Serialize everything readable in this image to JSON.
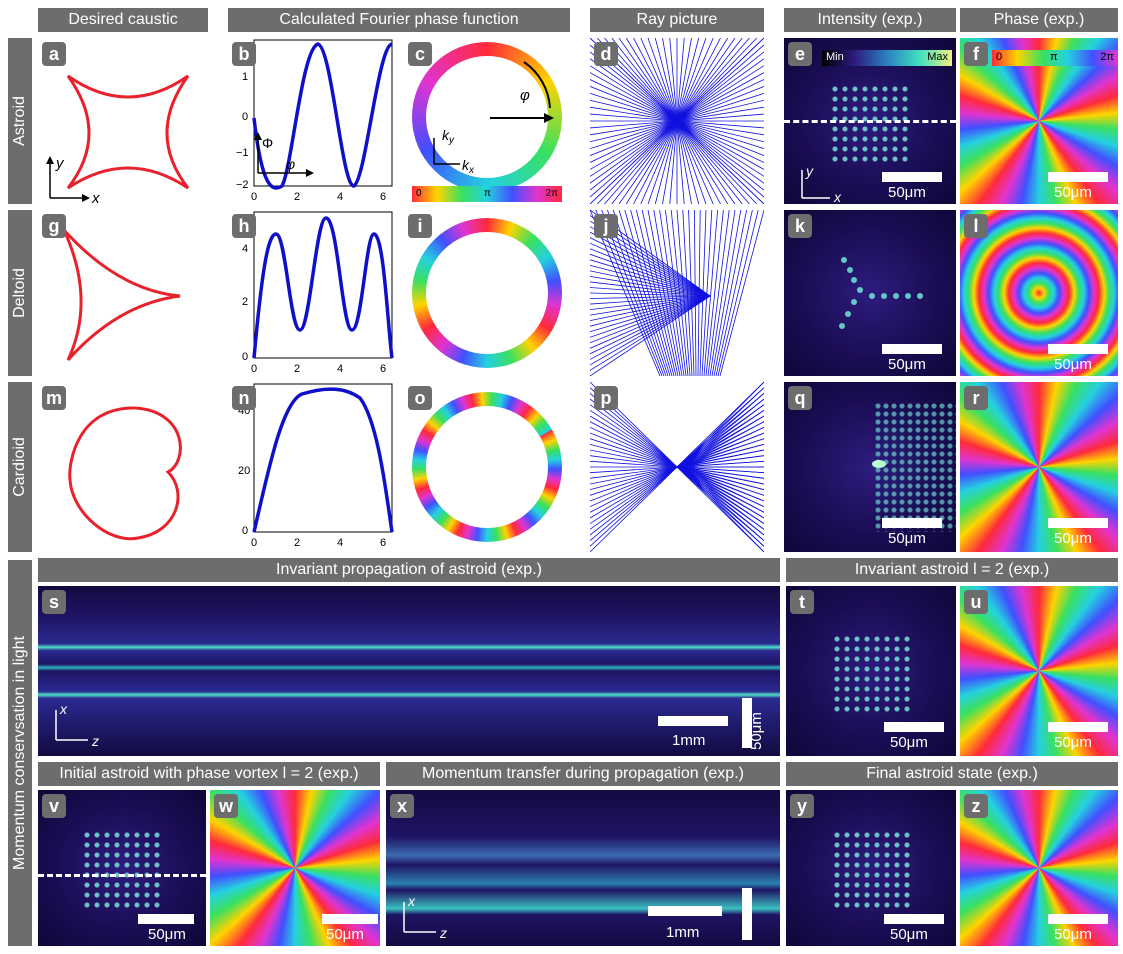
{
  "headers": {
    "desired_caustic": "Desired caustic",
    "fourier_phase": "Calculated Fourier phase function",
    "ray_picture": "Ray picture",
    "intensity_exp": "Intensity (exp.)",
    "phase_exp": "Phase (exp.)",
    "invariant_propagation": "Invariant propagation of astroid (exp.)",
    "invariant_astroid_l2": "Invariant astroid l = 2 (exp.)",
    "initial_astroid": "Initial astroid with phase vortex l = 2 (exp.)",
    "momentum_transfer": "Momentum transfer during propagation (exp.)",
    "final_astroid": "Final astroid state (exp.)"
  },
  "row_labels": {
    "astroid": "Astroid",
    "deltoid": "Deltoid",
    "cardioid": "Cardioid",
    "momentum": "Momentum conservsation in light"
  },
  "panel_letters": [
    "a",
    "b",
    "c",
    "d",
    "e",
    "f",
    "g",
    "h",
    "i",
    "j",
    "k",
    "l",
    "m",
    "n",
    "o",
    "p",
    "q",
    "r",
    "s",
    "t",
    "u",
    "v",
    "w",
    "x",
    "y",
    "z"
  ],
  "scale_bars": {
    "um50": "50μm",
    "mm1": "1mm"
  },
  "axis_labels": {
    "x": "x",
    "y": "y",
    "z": "z",
    "phi": "φ",
    "Phi": "Φ",
    "kx": "k",
    "ky": "k",
    "kx_sub": "x",
    "ky_sub": "y"
  },
  "colorbars": {
    "intensity_min": "Min",
    "intensity_max": "Max",
    "phase_0": "0",
    "phase_pi": "π",
    "phase_2pi": "2π"
  },
  "colors": {
    "caustic_red": "#e8222c",
    "curve_blue": "#1010c8",
    "header_gray": "#6d6d6d"
  },
  "chart_data": [
    {
      "type": "line",
      "panel": "b",
      "x": [
        0,
        1,
        2,
        3,
        4,
        5,
        6.28
      ],
      "ylim": [
        -2.5,
        2
      ],
      "xticks": [
        "0",
        "2",
        "4",
        "6"
      ],
      "yticks": [
        "1",
        "0",
        "−1",
        "−2"
      ],
      "xlabel": "φ",
      "ylabel": "Φ"
    },
    {
      "type": "line",
      "panel": "h",
      "x": [
        0,
        1,
        2,
        3,
        4,
        5,
        6.28
      ],
      "ylim": [
        0,
        6
      ],
      "xticks": [
        "0",
        "2",
        "4",
        "6"
      ],
      "yticks": [
        "0",
        "2",
        "4"
      ]
    },
    {
      "type": "line",
      "panel": "n",
      "x": [
        0,
        1,
        2,
        3,
        4,
        5,
        6.28
      ],
      "ylim": [
        0,
        50
      ],
      "xticks": [
        "0",
        "2",
        "4",
        "6"
      ],
      "yticks": [
        "0",
        "20",
        "40"
      ]
    }
  ]
}
